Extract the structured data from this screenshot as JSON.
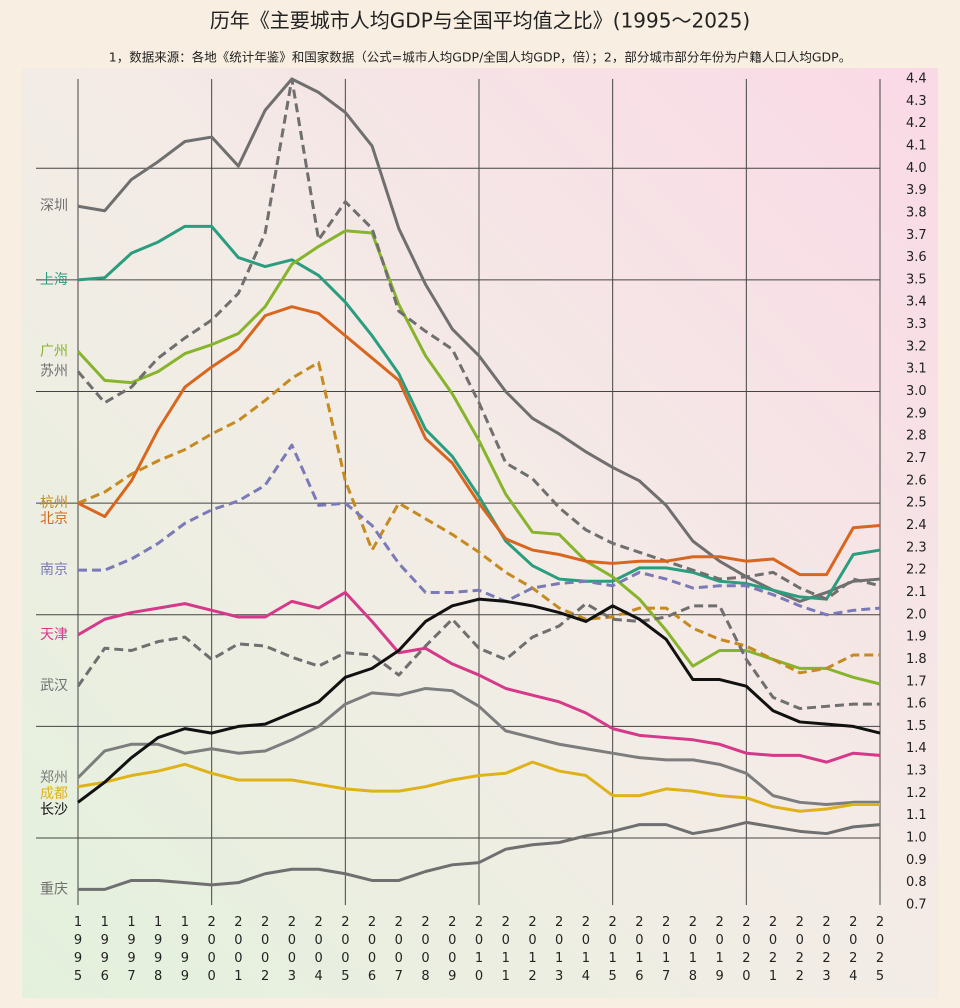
{
  "chart_data": {
    "type": "line",
    "title": "历年《主要城市人均GDP与全国平均值之比》(1995～2025)",
    "subtitle": "1，数据来源：各地《统计年鉴》和国家数据（公式=城市人均GDP/全国人均GDP，倍）；2，部分城市部分年份为户籍人口人均GDP。",
    "categories": [
      "1995",
      "1996",
      "1997",
      "1998",
      "1999",
      "2000",
      "2001",
      "2002",
      "2003",
      "2004",
      "2005",
      "2006",
      "2007",
      "2008",
      "2009",
      "2010",
      "2011",
      "2012",
      "2013",
      "2014",
      "2015",
      "2016",
      "2017",
      "2018",
      "2019",
      "2020",
      "2021",
      "2022",
      "2023",
      "2024",
      "2025"
    ],
    "ylim": [
      0.7,
      4.4
    ],
    "yticks": [
      0.7,
      0.8,
      0.9,
      {
        "value": 1,
        "label": "1.0"
      },
      1.1,
      1.2,
      1.3,
      1.4,
      1.5,
      1.6,
      1.7,
      1.8,
      1.9,
      {
        "value": 2,
        "label": "2.0"
      },
      2.1,
      2.2,
      2.3,
      2.4,
      2.5,
      2.6,
      2.7,
      2.8,
      2.9,
      {
        "value": 3,
        "label": "3.0"
      },
      3.1,
      3.2,
      3.3,
      3.4,
      3.5,
      3.6,
      3.7,
      3.8,
      3.9,
      {
        "value": 4,
        "label": "4.0"
      },
      4.1,
      4.2,
      4.3,
      4.4
    ],
    "grid": true,
    "series": [
      {
        "name": "深圳",
        "color": "#6f6f6f",
        "dash": false,
        "values": [
          3.83,
          3.81,
          3.95,
          4.03,
          4.12,
          4.14,
          4.01,
          4.26,
          4.4,
          4.34,
          4.25,
          4.1,
          3.73,
          3.48,
          3.28,
          3.16,
          3.0,
          2.88,
          2.81,
          2.73,
          2.66,
          2.6,
          2.49,
          2.33,
          2.24,
          2.17,
          2.11,
          2.06,
          2.1,
          2.15,
          2.16
        ]
      },
      {
        "name": "上海",
        "color": "#2a9d7f",
        "dash": false,
        "values": [
          3.5,
          3.51,
          3.62,
          3.67,
          3.74,
          3.74,
          3.6,
          3.56,
          3.59,
          3.52,
          3.4,
          3.25,
          3.08,
          2.83,
          2.71,
          2.53,
          2.33,
          2.22,
          2.16,
          2.15,
          2.15,
          2.21,
          2.21,
          2.19,
          2.15,
          2.14,
          2.11,
          2.08,
          2.07,
          2.27,
          2.29
        ]
      },
      {
        "name": "广州",
        "color": "#86b42a",
        "dash": false,
        "values": [
          3.18,
          3.05,
          3.04,
          3.09,
          3.17,
          3.21,
          3.26,
          3.38,
          3.57,
          3.65,
          3.72,
          3.71,
          3.39,
          3.16,
          2.99,
          2.78,
          2.54,
          2.37,
          2.36,
          2.24,
          2.17,
          2.07,
          1.93,
          1.77,
          1.84,
          1.84,
          1.8,
          1.76,
          1.76,
          1.72,
          1.69
        ]
      },
      {
        "name": "苏州",
        "color": "#6f6f6f",
        "dash": true,
        "values": [
          3.09,
          2.95,
          3.02,
          3.15,
          3.24,
          3.32,
          3.44,
          3.71,
          4.4,
          3.68,
          3.85,
          3.73,
          3.36,
          3.27,
          3.19,
          2.95,
          2.68,
          2.61,
          2.48,
          2.38,
          2.32,
          2.28,
          2.24,
          2.2,
          2.16,
          2.17,
          2.19,
          2.12,
          2.07,
          2.16,
          2.13
        ]
      },
      {
        "name": "杭州",
        "color": "#c68a1e",
        "dash": true,
        "values": [
          2.5,
          2.55,
          2.63,
          2.69,
          2.74,
          2.81,
          2.87,
          2.96,
          3.06,
          3.13,
          2.6,
          2.29,
          2.5,
          2.43,
          2.36,
          2.28,
          2.19,
          2.12,
          2.03,
          1.98,
          1.99,
          2.03,
          2.03,
          1.94,
          1.89,
          1.86,
          1.8,
          1.74,
          1.76,
          1.82,
          1.82
        ]
      },
      {
        "name": "北京",
        "color": "#d9661e",
        "dash": false,
        "values": [
          2.5,
          2.44,
          2.6,
          2.83,
          3.02,
          3.11,
          3.19,
          3.34,
          3.38,
          3.35,
          3.25,
          3.15,
          3.05,
          2.79,
          2.68,
          2.5,
          2.34,
          2.29,
          2.27,
          2.24,
          2.23,
          2.24,
          2.24,
          2.26,
          2.26,
          2.24,
          2.25,
          2.18,
          2.18,
          2.39,
          2.4
        ]
      },
      {
        "name": "南京",
        "color": "#7a7ab8",
        "dash": true,
        "values": [
          2.2,
          2.2,
          2.25,
          2.32,
          2.41,
          2.47,
          2.51,
          2.58,
          2.76,
          2.49,
          2.5,
          2.4,
          2.23,
          2.1,
          2.1,
          2.11,
          2.06,
          2.12,
          2.14,
          2.15,
          2.13,
          2.19,
          2.16,
          2.12,
          2.13,
          2.13,
          2.09,
          2.04,
          2.0,
          2.02,
          2.03
        ]
      },
      {
        "name": "天津",
        "color": "#d6388a",
        "dash": false,
        "values": [
          1.91,
          1.98,
          2.01,
          2.03,
          2.05,
          2.02,
          1.99,
          1.99,
          2.06,
          2.03,
          2.1,
          1.97,
          1.83,
          1.85,
          1.78,
          1.73,
          1.67,
          1.64,
          1.61,
          1.56,
          1.49,
          1.46,
          1.45,
          1.44,
          1.42,
          1.38,
          1.37,
          1.37,
          1.34,
          1.38,
          1.37
        ]
      },
      {
        "name": "武汉",
        "color": "#6f6f6f",
        "dash": true,
        "values": [
          1.68,
          1.85,
          1.84,
          1.88,
          1.9,
          1.8,
          1.87,
          1.86,
          1.81,
          1.77,
          1.83,
          1.82,
          1.73,
          1.86,
          1.98,
          1.85,
          1.8,
          1.9,
          1.95,
          2.05,
          1.98,
          1.97,
          1.99,
          2.04,
          2.04,
          1.8,
          1.63,
          1.58,
          1.59,
          1.6,
          1.6
        ]
      },
      {
        "name": "郑州",
        "color": "#7d7d7d",
        "dash": false,
        "values": [
          1.27,
          1.39,
          1.42,
          1.42,
          1.38,
          1.4,
          1.38,
          1.39,
          1.44,
          1.5,
          1.6,
          1.65,
          1.64,
          1.67,
          1.66,
          1.59,
          1.48,
          1.45,
          1.42,
          1.4,
          1.38,
          1.36,
          1.35,
          1.35,
          1.33,
          1.29,
          1.19,
          1.16,
          1.15,
          1.16,
          1.16
        ]
      },
      {
        "name": "成都",
        "color": "#e0b21a",
        "dash": false,
        "values": [
          1.23,
          1.25,
          1.28,
          1.3,
          1.33,
          1.29,
          1.26,
          1.26,
          1.26,
          1.24,
          1.22,
          1.21,
          1.21,
          1.23,
          1.26,
          1.28,
          1.29,
          1.34,
          1.3,
          1.28,
          1.19,
          1.19,
          1.22,
          1.21,
          1.19,
          1.18,
          1.14,
          1.12,
          1.13,
          1.15,
          1.15
        ]
      },
      {
        "name": "长沙",
        "color": "#111111",
        "dash": false,
        "values": [
          1.16,
          1.25,
          1.36,
          1.45,
          1.49,
          1.47,
          1.5,
          1.51,
          1.56,
          1.61,
          1.72,
          1.76,
          1.84,
          1.97,
          2.04,
          2.07,
          2.06,
          2.04,
          2.01,
          1.97,
          2.04,
          1.98,
          1.89,
          1.71,
          1.71,
          1.68,
          1.57,
          1.52,
          1.51,
          1.5,
          1.47
        ]
      },
      {
        "name": "重庆",
        "color": "#6f6f6f",
        "dash": false,
        "values": [
          0.77,
          0.77,
          0.81,
          0.81,
          0.8,
          0.79,
          0.8,
          0.84,
          0.86,
          0.86,
          0.84,
          0.81,
          0.81,
          0.85,
          0.88,
          0.89,
          0.95,
          0.97,
          0.98,
          1.01,
          1.03,
          1.06,
          1.06,
          1.02,
          1.04,
          1.07,
          1.05,
          1.03,
          1.02,
          1.05,
          1.06
        ]
      }
    ]
  }
}
